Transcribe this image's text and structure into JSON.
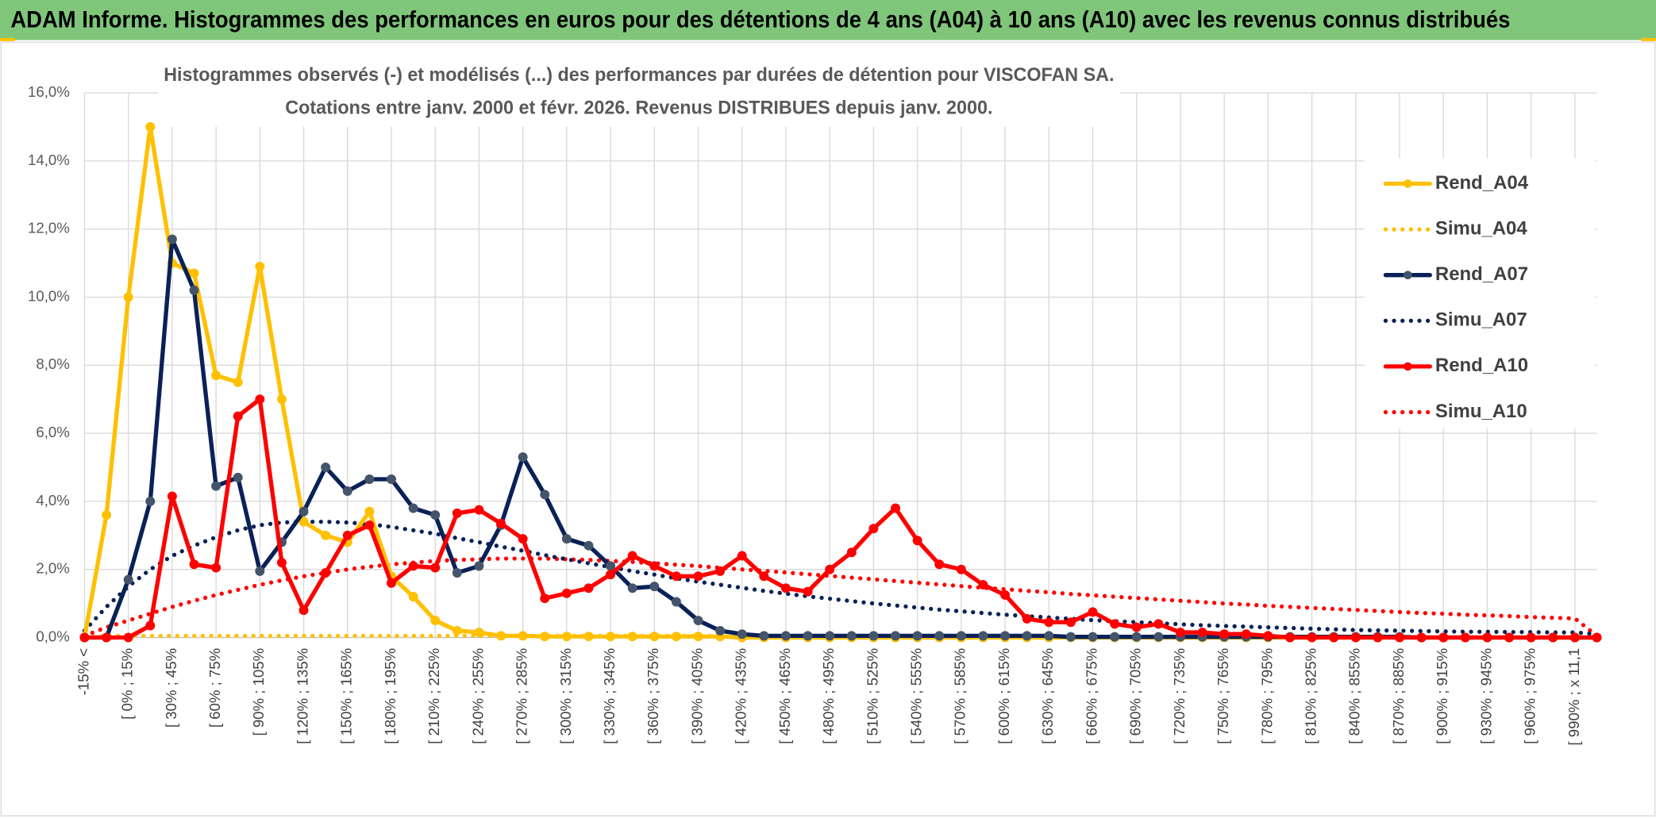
{
  "header": {
    "title": "ADAM Informe. Histogrammes des performances en euros pour des détentions de 4 ans (A04) à 10 ans (A10) avec les revenus connus distribués"
  },
  "chart_data": {
    "type": "line",
    "title": "Histogrammes observés (-) et modélisés (...) des performances par durées de détention pour VISCOFAN SA.",
    "subtitle": "Cotations entre janv. 2000 et févr. 2026. Revenus DISTRIBUES depuis janv. 2000.",
    "categories": [
      "-15% <",
      null,
      "[ 0% ; 15%",
      null,
      "[ 30% ; 45%",
      null,
      "[ 60% ; 75%",
      null,
      "[ 90% ; 105%",
      null,
      "[ 120% ; 135%",
      null,
      "[ 150% ; 165%",
      null,
      "[ 180% ; 195%",
      null,
      "[ 210% ; 225%",
      null,
      "[ 240% ; 255%",
      null,
      "[ 270% ; 285%",
      null,
      "[ 300% ; 315%",
      null,
      "[ 330% ; 345%",
      null,
      "[ 360% ; 375%",
      null,
      "[ 390% ; 405%",
      null,
      "[ 420% ; 435%",
      null,
      "[ 450% ; 465%",
      null,
      "[ 480% ; 495%",
      null,
      "[ 510% ; 525%",
      null,
      "[ 540% ; 555%",
      null,
      "[ 570% ; 585%",
      null,
      "[ 600% ; 615%",
      null,
      "[ 630% ; 645%",
      null,
      "[ 660% ; 675%",
      null,
      "[ 690% ; 705%",
      null,
      "[ 720% ; 735%",
      null,
      "[ 750% ; 765%",
      null,
      "[ 780% ; 795%",
      null,
      "[ 810% ; 825%",
      null,
      "[ 840% ; 855%",
      null,
      "[ 870% ; 885%",
      null,
      "[ 900% ; 915%",
      null,
      "[ 930% ; 945%",
      null,
      "[ 960% ; 975%",
      null,
      "[ 990% ; x 11,1",
      null
    ],
    "series": [
      {
        "name": "Rend_A04",
        "color": "#FFC000",
        "marker_color": "#FFC000",
        "style": "solid",
        "values": [
          0,
          3.6,
          10,
          15,
          11,
          10.7,
          7.7,
          7.5,
          10.9,
          7,
          3.4,
          3,
          2.8,
          3.7,
          1.8,
          1.2,
          0.5,
          0.2,
          0.15,
          0.05,
          0.05,
          0.03,
          0.03,
          0.03,
          0.03,
          0.03,
          0.03,
          0.03,
          0.03,
          0.03,
          0,
          0,
          0,
          0,
          0,
          0,
          0,
          0,
          0,
          0,
          0,
          0,
          0,
          0,
          0,
          0,
          0,
          0,
          0,
          0,
          0,
          0,
          0,
          0,
          0,
          0,
          0,
          0,
          0,
          0,
          0,
          0,
          0,
          0,
          0,
          0,
          0,
          0,
          0,
          0
        ]
      },
      {
        "name": "Simu_A04",
        "color": "#FFC000",
        "style": "dotted",
        "values": [
          0,
          0.05,
          0.05,
          0.05,
          0.05,
          0.05,
          0.05,
          0.05,
          0.05,
          0.05,
          0.05,
          0.05,
          0.05,
          0.05,
          0.05,
          0.05,
          0.05,
          0.05,
          0.05,
          0.05,
          0.05,
          0.05,
          0.05,
          0.05,
          0.05,
          0.05,
          0.05,
          0.05,
          0.05,
          0.05,
          0,
          0,
          0,
          0,
          0,
          0,
          0,
          0,
          0,
          0,
          0,
          0,
          0,
          0,
          0,
          0,
          0,
          0,
          0,
          0,
          0,
          0,
          0,
          0,
          0,
          0,
          0,
          0,
          0,
          0,
          0,
          0,
          0,
          0,
          0,
          0,
          0,
          0,
          0,
          0
        ]
      },
      {
        "name": "Rend_A07",
        "color": "#0A2157",
        "marker_color": "#44546A",
        "style": "solid",
        "values": [
          0,
          0,
          1.7,
          4,
          11.7,
          10.2,
          4.45,
          4.7,
          1.95,
          2.8,
          3.7,
          5,
          4.3,
          4.65,
          4.65,
          3.8,
          3.6,
          1.9,
          2.1,
          3.3,
          5.3,
          4.2,
          2.9,
          2.7,
          2.1,
          1.45,
          1.5,
          1.05,
          0.5,
          0.2,
          0.1,
          0.05,
          0.05,
          0.05,
          0.05,
          0.05,
          0.05,
          0.05,
          0.05,
          0.05,
          0.05,
          0.05,
          0.05,
          0.05,
          0.05,
          0.02,
          0.02,
          0.02,
          0.02,
          0.02,
          0.02,
          0.02,
          0.02,
          0.02,
          0.02,
          0.02,
          0.02,
          0.02,
          0.02,
          0.02,
          0.02,
          0,
          0,
          0,
          0,
          0,
          0,
          0,
          0,
          0
        ]
      },
      {
        "name": "Simu_A07",
        "color": "#0A2157",
        "style": "dotted",
        "values": [
          0.2,
          0.9,
          1.5,
          2.0,
          2.4,
          2.7,
          2.95,
          3.15,
          3.3,
          3.38,
          3.4,
          3.4,
          3.38,
          3.33,
          3.25,
          3.15,
          3.05,
          2.92,
          2.8,
          2.67,
          2.55,
          2.42,
          2.3,
          2.18,
          2.07,
          1.95,
          1.85,
          1.74,
          1.64,
          1.55,
          1.46,
          1.37,
          1.29,
          1.21,
          1.14,
          1.07,
          1,
          0.94,
          0.88,
          0.82,
          0.77,
          0.72,
          0.67,
          0.63,
          0.59,
          0.55,
          0.51,
          0.48,
          0.45,
          0.42,
          0.39,
          0.36,
          0.34,
          0.32,
          0.3,
          0.28,
          0.26,
          0.24,
          0.22,
          0.21,
          0.2,
          0.19,
          0.18,
          0.17,
          0.17,
          0.16,
          0.16,
          0.15,
          0.15,
          0.1
        ]
      },
      {
        "name": "Rend_A10",
        "color": "#FF0000",
        "marker_color": "#FF0000",
        "style": "solid",
        "values": [
          0,
          0,
          0,
          0.35,
          4.15,
          2.15,
          2.05,
          6.5,
          7,
          2.2,
          0.8,
          1.9,
          3,
          3.3,
          1.6,
          2.1,
          2.05,
          3.65,
          3.75,
          3.35,
          2.9,
          1.15,
          1.3,
          1.45,
          1.85,
          2.4,
          2.1,
          1.8,
          1.8,
          1.95,
          2.4,
          1.8,
          1.45,
          1.35,
          2,
          2.5,
          3.2,
          3.8,
          2.85,
          2.15,
          2,
          1.55,
          1.25,
          0.55,
          0.45,
          0.45,
          0.75,
          0.4,
          0.3,
          0.4,
          0.15,
          0.15,
          0.1,
          0.1,
          0.05,
          0,
          0,
          0,
          0,
          0,
          0,
          0,
          0,
          0,
          0,
          0,
          0,
          0,
          0,
          0
        ]
      },
      {
        "name": "Simu_A10",
        "color": "#FF0000",
        "style": "dotted",
        "values": [
          0.05,
          0.3,
          0.5,
          0.7,
          0.9,
          1.08,
          1.25,
          1.4,
          1.55,
          1.68,
          1.8,
          1.9,
          2,
          2.08,
          2.15,
          2.2,
          2.25,
          2.28,
          2.3,
          2.32,
          2.32,
          2.32,
          2.3,
          2.28,
          2.25,
          2.22,
          2.18,
          2.14,
          2.1,
          2.05,
          2,
          1.96,
          1.91,
          1.86,
          1.81,
          1.76,
          1.71,
          1.66,
          1.61,
          1.56,
          1.51,
          1.46,
          1.42,
          1.37,
          1.33,
          1.28,
          1.24,
          1.2,
          1.16,
          1.12,
          1.08,
          1.04,
          1,
          0.97,
          0.93,
          0.9,
          0.87,
          0.84,
          0.81,
          0.78,
          0.75,
          0.72,
          0.7,
          0.67,
          0.65,
          0.63,
          0.6,
          0.58,
          0.56,
          0.05
        ]
      }
    ],
    "ylim": [
      0,
      16
    ],
    "yticks": [
      {
        "value": 0,
        "label": "0,0%"
      },
      {
        "value": 2,
        "label": "2,0%"
      },
      {
        "value": 4,
        "label": "4,0%"
      },
      {
        "value": 6,
        "label": "6,0%"
      },
      {
        "value": 8,
        "label": "8,0%"
      },
      {
        "value": 10,
        "label": "10,0%"
      },
      {
        "value": 12,
        "label": "12,0%"
      },
      {
        "value": 14,
        "label": "14,0%"
      },
      {
        "value": 16,
        "label": "16,0%"
      }
    ],
    "grid": true,
    "legend": "right"
  }
}
